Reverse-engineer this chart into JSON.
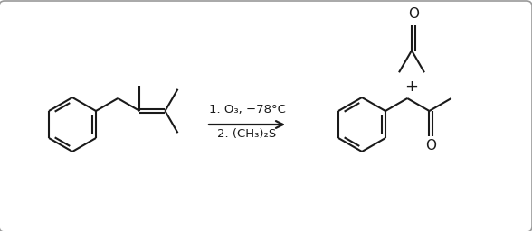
{
  "figure_width": 5.88,
  "figure_height": 2.56,
  "dpi": 100,
  "border_color": "#999999",
  "line_color": "#1a1a1a",
  "bond_lw": 1.5,
  "font_size": 9.5,
  "arrow_text_line1": "1. O₃, −78°C",
  "arrow_text_line2": "2. (CH₃)₂S",
  "plus_sign": "+"
}
